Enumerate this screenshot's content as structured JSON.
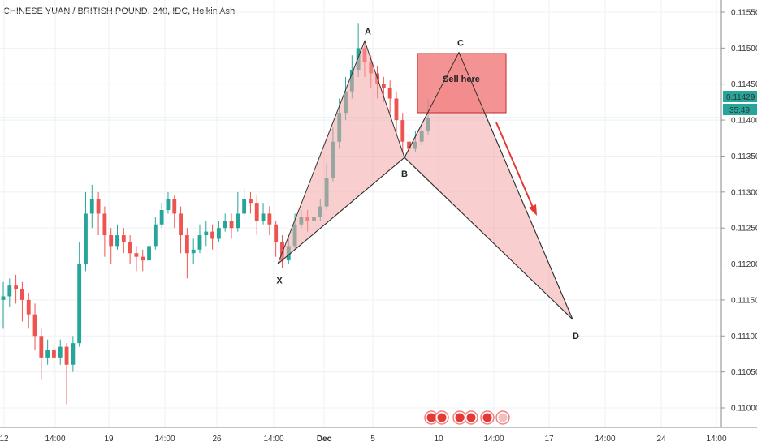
{
  "header": {
    "title": "CHINESE YUAN / BRITISH POUND, 240, IDC, Heikin Ashi"
  },
  "price_tags": {
    "current": "0.11429",
    "countdown": "35:49"
  },
  "colors": {
    "up": "#26a69a",
    "down": "#ef5350",
    "pattern_fill": "#f4a6a6",
    "zone_fill": "#f28080",
    "arrow": "#e53935",
    "last_line": "#4ec4d4"
  },
  "chart_data": {
    "type": "candlestick",
    "chart_style": "Heikin Ashi",
    "ylim": [
      0.1098,
      0.1158
    ],
    "y_ticks": [
      "0.11550",
      "0.11500",
      "0.11450",
      "0.11400",
      "0.11350",
      "0.11300",
      "0.11250",
      "0.11200",
      "0.11150",
      "0.11100",
      "0.11050",
      "0.11000"
    ],
    "x_ticks": [
      "12",
      "14:00",
      "19",
      "14:00",
      "26",
      "14:00",
      "Dec",
      "5",
      "10",
      "14:00",
      "17",
      "14:00",
      "24",
      "14:00"
    ],
    "last_price": 0.11403,
    "pattern": {
      "points": [
        {
          "label": "X",
          "price": 0.112
        },
        {
          "label": "A",
          "price": 0.1151
        },
        {
          "label": "B",
          "price": 0.11348
        },
        {
          "label": "C",
          "price": 0.11494
        },
        {
          "label": "D",
          "price": 0.11123
        }
      ]
    },
    "annotations": [
      "Sell here"
    ],
    "candles": [
      [
        0.1115,
        0.11155,
        0.1111,
        0.11175
      ],
      [
        0.11155,
        0.1117,
        0.1114,
        0.1118
      ],
      [
        0.1117,
        0.11165,
        0.11145,
        0.11185
      ],
      [
        0.11165,
        0.1115,
        0.1112,
        0.11175
      ],
      [
        0.1115,
        0.1113,
        0.1111,
        0.1116
      ],
      [
        0.1113,
        0.111,
        0.1108,
        0.11145
      ],
      [
        0.111,
        0.1107,
        0.1104,
        0.1111
      ],
      [
        0.1107,
        0.1108,
        0.1106,
        0.11095
      ],
      [
        0.1108,
        0.1107,
        0.1105,
        0.1109
      ],
      [
        0.1107,
        0.11085,
        0.1106,
        0.11095
      ],
      [
        0.11085,
        0.1106,
        0.11005,
        0.1109
      ],
      [
        0.1106,
        0.1109,
        0.1105,
        0.111
      ],
      [
        0.1109,
        0.112,
        0.11085,
        0.1123
      ],
      [
        0.112,
        0.1127,
        0.1119,
        0.113
      ],
      [
        0.1127,
        0.1129,
        0.1125,
        0.1131
      ],
      [
        0.1129,
        0.1127,
        0.1124,
        0.113
      ],
      [
        0.1127,
        0.1124,
        0.1121,
        0.1128
      ],
      [
        0.1124,
        0.11225,
        0.112,
        0.1125
      ],
      [
        0.11225,
        0.1124,
        0.1122,
        0.11255
      ],
      [
        0.1124,
        0.1123,
        0.11215,
        0.1125
      ],
      [
        0.1123,
        0.11215,
        0.112,
        0.1124
      ],
      [
        0.11215,
        0.1121,
        0.1119,
        0.11225
      ],
      [
        0.1121,
        0.11205,
        0.1119,
        0.1122
      ],
      [
        0.11205,
        0.11225,
        0.112,
        0.11235
      ],
      [
        0.11225,
        0.11255,
        0.1122,
        0.11265
      ],
      [
        0.11255,
        0.11275,
        0.1125,
        0.11285
      ],
      [
        0.11275,
        0.1129,
        0.1127,
        0.113
      ],
      [
        0.1129,
        0.1127,
        0.1125,
        0.11295
      ],
      [
        0.1127,
        0.1124,
        0.11215,
        0.1128
      ],
      [
        0.1124,
        0.11215,
        0.1118,
        0.1125
      ],
      [
        0.11215,
        0.1122,
        0.112,
        0.11235
      ],
      [
        0.1122,
        0.1124,
        0.11215,
        0.11255
      ],
      [
        0.1124,
        0.11245,
        0.11225,
        0.1126
      ],
      [
        0.11245,
        0.11235,
        0.1122,
        0.11255
      ],
      [
        0.11235,
        0.1125,
        0.1123,
        0.1126
      ],
      [
        0.1125,
        0.1126,
        0.11245,
        0.1127
      ],
      [
        0.1126,
        0.1125,
        0.11235,
        0.1127
      ],
      [
        0.1125,
        0.1127,
        0.11245,
        0.113
      ],
      [
        0.1127,
        0.1129,
        0.11265,
        0.11305
      ],
      [
        0.1129,
        0.11285,
        0.1127,
        0.113
      ],
      [
        0.11285,
        0.1126,
        0.1124,
        0.11295
      ],
      [
        0.1126,
        0.1127,
        0.11255,
        0.11285
      ],
      [
        0.1127,
        0.11255,
        0.1124,
        0.1128
      ],
      [
        0.11255,
        0.1123,
        0.1121,
        0.1126
      ],
      [
        0.1123,
        0.11205,
        0.11195,
        0.1124
      ],
      [
        0.11205,
        0.11225,
        0.112,
        0.1124
      ],
      [
        0.11225,
        0.11255,
        0.1122,
        0.1127
      ],
      [
        0.11255,
        0.11265,
        0.1125,
        0.11275
      ],
      [
        0.11265,
        0.1126,
        0.11245,
        0.11275
      ],
      [
        0.1126,
        0.11265,
        0.1125,
        0.11275
      ],
      [
        0.11265,
        0.1128,
        0.1126,
        0.1129
      ],
      [
        0.1128,
        0.1132,
        0.11275,
        0.1134
      ],
      [
        0.1132,
        0.1137,
        0.11315,
        0.1139
      ],
      [
        0.1137,
        0.1141,
        0.1136,
        0.1143
      ],
      [
        0.1141,
        0.1144,
        0.114,
        0.1146
      ],
      [
        0.1144,
        0.1147,
        0.1143,
        0.1149
      ],
      [
        0.1147,
        0.115,
        0.1146,
        0.11535
      ],
      [
        0.115,
        0.1148,
        0.1146,
        0.1151
      ],
      [
        0.1148,
        0.11465,
        0.11445,
        0.1149
      ],
      [
        0.11465,
        0.1145,
        0.1143,
        0.11475
      ],
      [
        0.1145,
        0.11445,
        0.11425,
        0.1146
      ],
      [
        0.11445,
        0.1143,
        0.1141,
        0.11455
      ],
      [
        0.1143,
        0.114,
        0.1138,
        0.1144
      ],
      [
        0.114,
        0.1137,
        0.11355,
        0.1141
      ],
      [
        0.1137,
        0.1136,
        0.11345,
        0.1138
      ],
      [
        0.1136,
        0.1137,
        0.11355,
        0.11385
      ],
      [
        0.1137,
        0.11385,
        0.11365,
        0.11395
      ],
      [
        0.11385,
        0.11403,
        0.1138,
        0.1143
      ]
    ]
  }
}
